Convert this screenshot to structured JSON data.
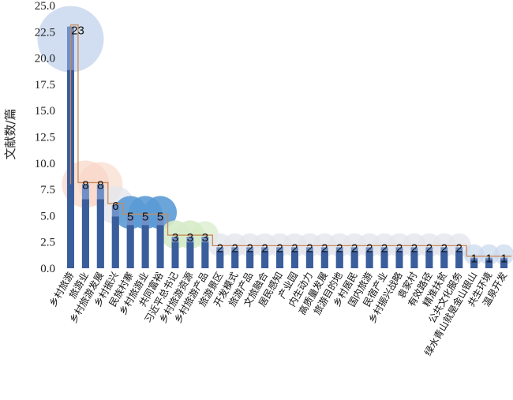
{
  "chart_data": {
    "type": "bar",
    "ylabel": "文献数/篇",
    "ylim": [
      0,
      25
    ],
    "yticks": [
      "0.0",
      "2.5",
      "5.0",
      "7.5",
      "10.0",
      "12.5",
      "15.0",
      "17.5",
      "20.0",
      "22.5",
      "25.0"
    ],
    "categories": [
      "乡村旅游",
      "旅游业",
      "乡村旅游发展",
      "乡村振兴",
      "民族村寨",
      "乡村旅游业",
      "共同富裕",
      "习近平总书记",
      "乡村旅游资源",
      "乡村旅游产品",
      "旅游景区",
      "开发模式",
      "旅游产品",
      "文旅融合",
      "居民感知",
      "产业园",
      "内生动力",
      "高质量发展",
      "旅游目的地",
      "乡村居民",
      "国内旅游",
      "民宿产业",
      "乡村振兴战略",
      "袁家村",
      "有效路径",
      "精准扶贫",
      "公共文化服务",
      "绿水青山就是金山银山",
      "共生环境",
      "温泉开发"
    ],
    "values": [
      23,
      8,
      8,
      6,
      5,
      5,
      5,
      3,
      3,
      3,
      2,
      2,
      2,
      2,
      2,
      2,
      2,
      2,
      2,
      2,
      2,
      2,
      2,
      2,
      2,
      2,
      2,
      1,
      1,
      1
    ],
    "value_labels": [
      "23",
      "8",
      "8",
      "6",
      "5",
      "5",
      "5",
      "3",
      "3",
      "3",
      "2",
      "2",
      "2",
      "2",
      "2",
      "2",
      "2",
      "2",
      "2",
      "2",
      "2",
      "2",
      "2",
      "2",
      "2",
      "2",
      "2",
      "1",
      "1",
      "1"
    ],
    "grid": false,
    "colors": {
      "bar_dark": "#3a5d9c",
      "bar_light": "#6f8fc6",
      "line": "#c9895a",
      "bubble_large": "#c9d8ee",
      "bubble_peach": "#f8d6c4",
      "bubble_blue": "#5b9bd5",
      "bubble_green": "#d6ebc8",
      "bubble_gray": "#e3e6ec"
    }
  }
}
